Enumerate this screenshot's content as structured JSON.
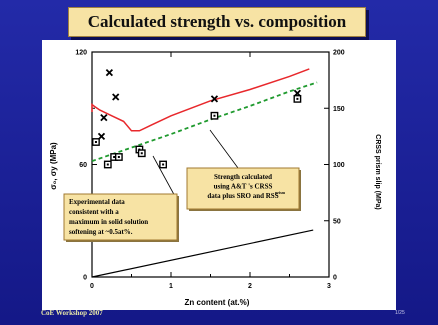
{
  "slide": {
    "title": "Calculated strength vs. composition",
    "footer_left": "CoE Workshop 2007",
    "page_number": "1/25"
  },
  "colors": {
    "background": "#1a1e9c",
    "title_box": "#f7e3a4",
    "annotation_box": "#f7e3a4",
    "calculated_curve": "#e8282c",
    "crss_line": "#1f9a2e",
    "base_line": "#000000"
  },
  "chart_data": {
    "type": "scatter",
    "title": "",
    "xlabel": "Zn content (at.%)",
    "ylabel_left": "σ₀, σy (MPa)",
    "ylabel_right": "CRSS prism slip (MPa)",
    "xlim": [
      0,
      3
    ],
    "ylim_left": [
      0,
      120
    ],
    "ylim_right": [
      0,
      200
    ],
    "x_ticks": [
      "0",
      "1",
      "2",
      "3"
    ],
    "y_ticks_left": [
      "0",
      "60",
      "120"
    ],
    "y_ticks_right": [
      "0",
      "50",
      "100",
      "150",
      "200"
    ],
    "grid": false,
    "series": [
      {
        "marker": "x",
        "values": [
          [
            0.12,
            75
          ],
          [
            0.22,
            109
          ],
          [
            0.3,
            96
          ],
          [
            0.15,
            85
          ],
          [
            1.55,
            95
          ],
          [
            2.6,
            98
          ]
        ]
      },
      {
        "marker": "square",
        "values": [
          [
            0.05,
            72
          ],
          [
            0.2,
            60
          ],
          [
            0.28,
            64
          ],
          [
            0.34,
            64
          ],
          [
            0.6,
            68
          ],
          [
            0.63,
            66
          ],
          [
            0.9,
            60
          ],
          [
            1.55,
            86
          ],
          [
            2.6,
            95
          ]
        ]
      },
      {
        "name": "calculated",
        "line": "solid",
        "values": [
          [
            0.0,
            88
          ],
          [
            0.0,
            92
          ],
          [
            0.03,
            91
          ],
          [
            0.1,
            89
          ],
          [
            0.25,
            86
          ],
          [
            0.4,
            83
          ],
          [
            0.5,
            78
          ],
          [
            0.6,
            78
          ],
          [
            0.75,
            81
          ],
          [
            1.0,
            86
          ],
          [
            1.5,
            94
          ],
          [
            2.0,
            100
          ],
          [
            2.5,
            107
          ],
          [
            2.75,
            111
          ]
        ]
      },
      {
        "name": "crss",
        "axis": "right",
        "line": "dashed",
        "values": [
          [
            0.0,
            103
          ],
          [
            0.5,
            115
          ],
          [
            1.0,
            127
          ],
          [
            1.5,
            140
          ],
          [
            2.0,
            152
          ],
          [
            2.5,
            165
          ],
          [
            2.85,
            173
          ]
        ]
      },
      {
        "name": "base",
        "line": "solid",
        "values": [
          [
            0.0,
            0
          ],
          [
            2.8,
            25
          ]
        ]
      }
    ],
    "annotations": [
      {
        "text_lines": [
          "Strength calculated",
          "using A&T 's CRSS",
          "data plus SRO and RSS"
        ],
        "superscript": "prism"
      },
      {
        "text_lines": [
          "Experimental data",
          "consistent with a",
          "maximum in solid solution",
          "softening at ~0.5at%."
        ]
      }
    ]
  }
}
